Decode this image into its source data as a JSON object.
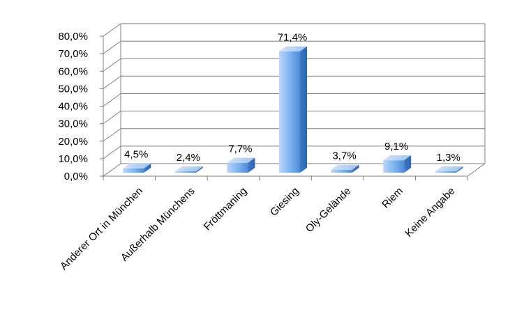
{
  "chart_data": {
    "type": "bar",
    "three_d": true,
    "categories": [
      "Anderer Ort in München",
      "Außerhalb Münchens",
      "Fröttmaning",
      "Giesing",
      "Oly-Gelände",
      "Riem",
      "Keine Angabe"
    ],
    "series": [
      {
        "values": [
          4.5,
          2.4,
          7.7,
          71.4,
          3.7,
          9.1,
          1.3
        ]
      }
    ],
    "data_labels": [
      "4,5%",
      "2,4%",
      "7,7%",
      "71,4%",
      "3,7%",
      "9,1%",
      "1,3%"
    ],
    "y_tick_labels": [
      "0,0%",
      "10,0%",
      "20,0%",
      "30,0%",
      "40,0%",
      "50,0%",
      "60,0%",
      "70,0%",
      "80,0%"
    ],
    "ylim": [
      0,
      80
    ],
    "title": "",
    "xlabel": "",
    "ylabel": "",
    "grid": true,
    "legend": "none",
    "colors": {
      "bar_light": "#a9cdf7",
      "bar_mid": "#6aa6ea",
      "bar_dark": "#3f7fd0",
      "grid": "#7f7f7f"
    }
  }
}
